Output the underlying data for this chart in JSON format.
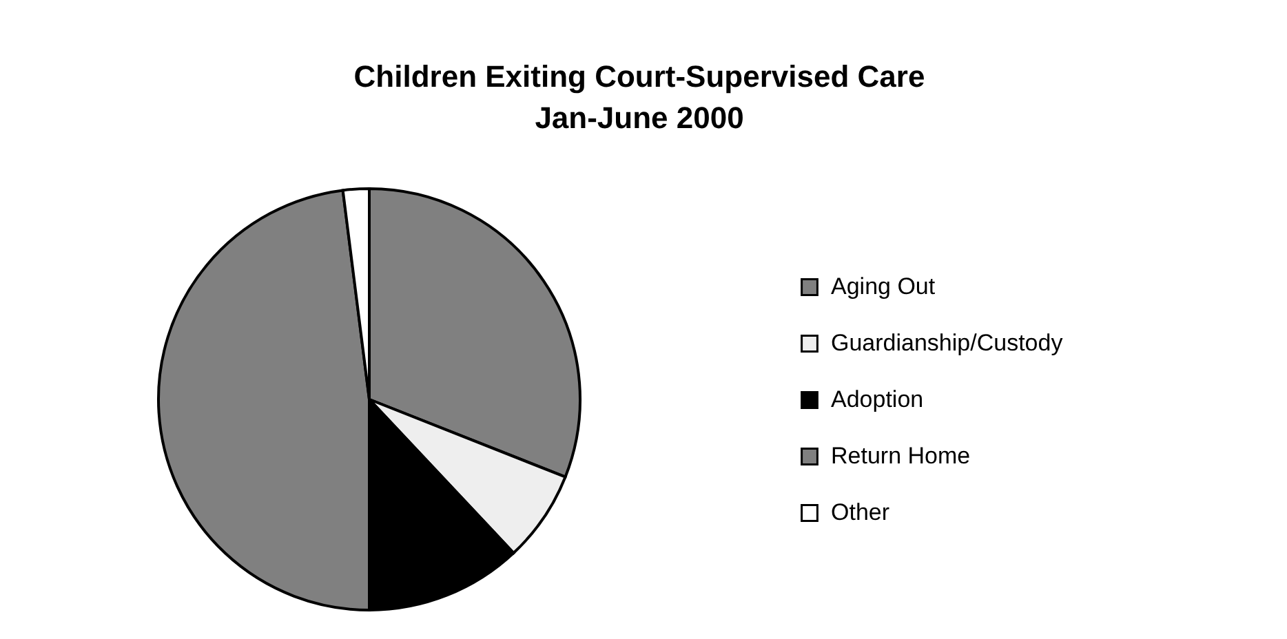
{
  "chart_data": {
    "type": "pie",
    "title": [
      "Children Exiting Court-Supervised Care",
      "Jan-June 2000"
    ],
    "categories": [
      "Aging Out",
      "Guardianship/Custody",
      "Adoption",
      "Return Home",
      "Other"
    ],
    "values": [
      31,
      7,
      12,
      48,
      2
    ],
    "colors": [
      "#808080",
      "#eeeeee",
      "#000000",
      "#808080",
      "#ffffff"
    ],
    "legend": "right"
  }
}
